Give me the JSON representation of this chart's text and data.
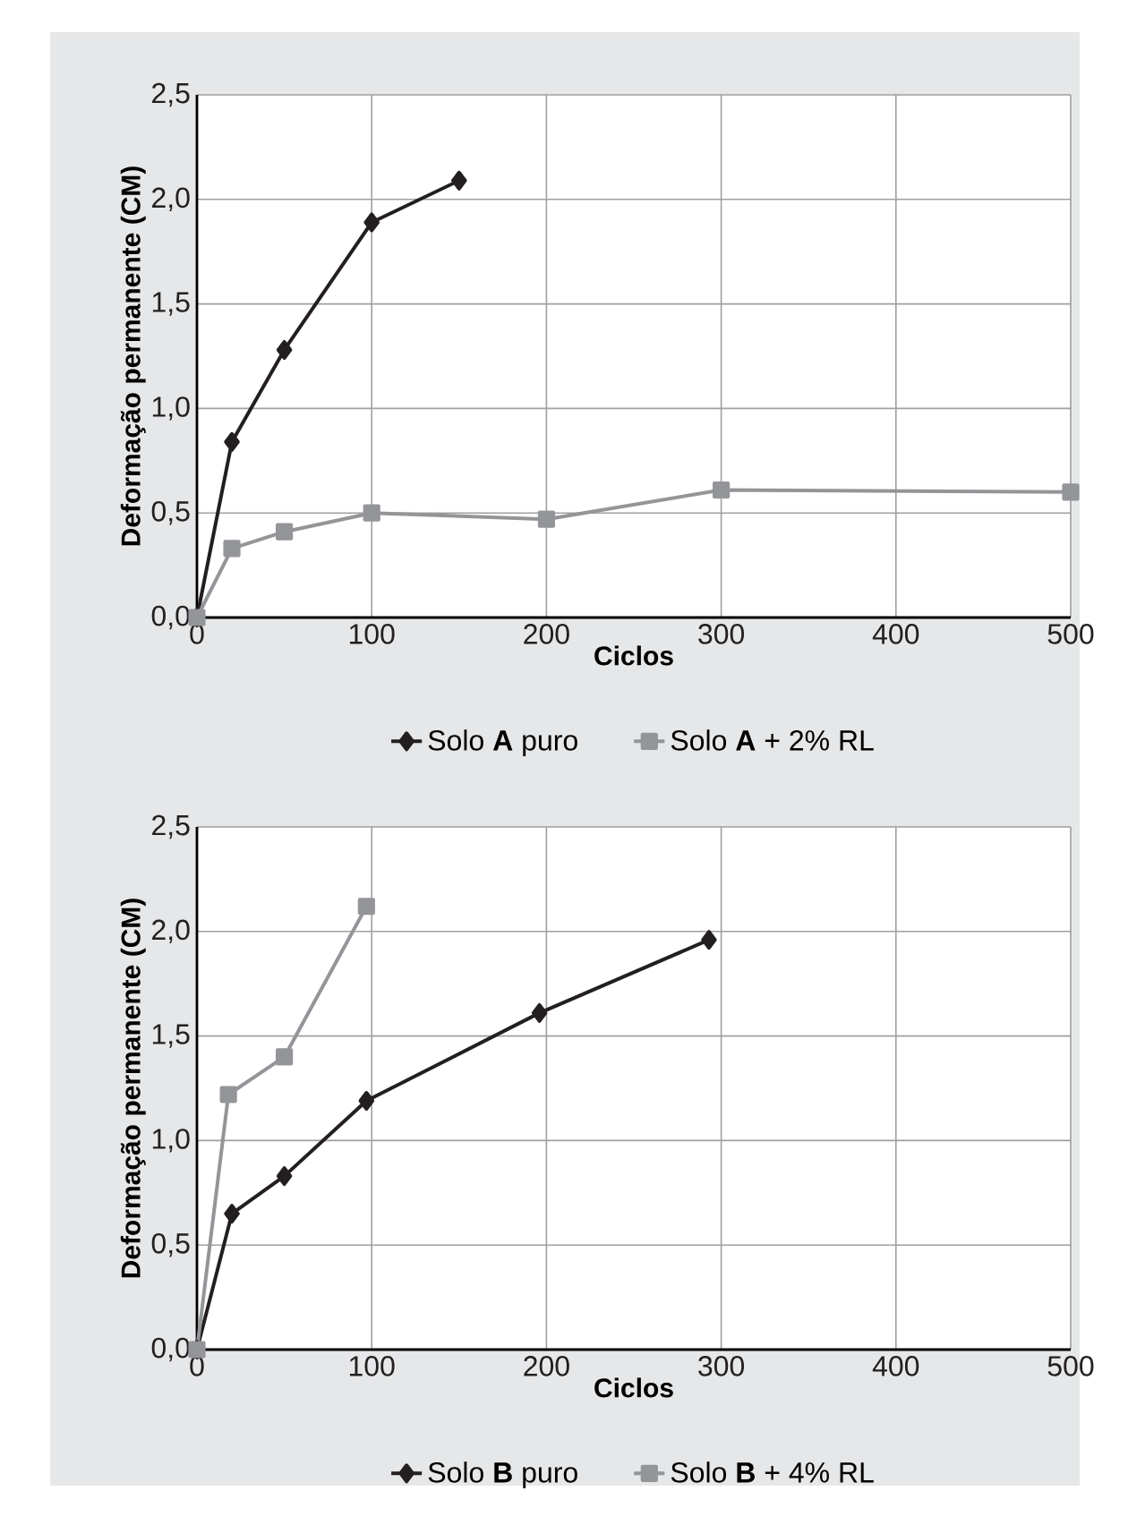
{
  "chart_data": [
    {
      "type": "line",
      "xlabel": "Ciclos",
      "ylabel": "Deformação permanente (CM)",
      "xlim": [
        0,
        500
      ],
      "ylim": [
        0,
        2.5
      ],
      "xticks": [
        0,
        100,
        200,
        300,
        400,
        500
      ],
      "yticks": [
        {
          "value": 0,
          "label": "0,0"
        },
        {
          "value": 0.5,
          "label": "0,5"
        },
        {
          "value": 1,
          "label": "1,0"
        },
        {
          "value": 1.5,
          "label": "1,5"
        },
        {
          "value": 2,
          "label": "2,0"
        },
        {
          "value": 2.5,
          "label": "2,5"
        }
      ],
      "grid": true,
      "legend": "bottom",
      "series": [
        {
          "name": "Solo **A** puro",
          "color": "#231f20",
          "marker": "diamond",
          "x": [
            0,
            20,
            50,
            100,
            150
          ],
          "values": [
            0,
            0.84,
            1.28,
            1.89,
            2.09
          ]
        },
        {
          "name": "Solo **A** + 2% RL",
          "color": "#939598",
          "marker": "square",
          "x": [
            0,
            20,
            50,
            100,
            200,
            300,
            500
          ],
          "values": [
            0,
            0.33,
            0.41,
            0.5,
            0.47,
            0.61,
            0.6
          ]
        }
      ]
    },
    {
      "type": "line",
      "xlabel": "Ciclos",
      "ylabel": "Deformação permanente (CM)",
      "xlim": [
        0,
        500
      ],
      "ylim": [
        0,
        2.5
      ],
      "xticks": [
        0,
        100,
        200,
        300,
        400,
        500
      ],
      "yticks": [
        {
          "value": 0,
          "label": "0,0"
        },
        {
          "value": 0.5,
          "label": "0,5"
        },
        {
          "value": 1,
          "label": "1,0"
        },
        {
          "value": 1.5,
          "label": "1,5"
        },
        {
          "value": 2,
          "label": "2,0"
        },
        {
          "value": 2.5,
          "label": "2,5"
        }
      ],
      "grid": true,
      "legend": "bottom",
      "series": [
        {
          "name": "Solo **B** puro",
          "color": "#231f20",
          "marker": "diamond",
          "x": [
            0,
            20,
            50,
            97,
            196,
            293
          ],
          "values": [
            0,
            0.65,
            0.83,
            1.19,
            1.61,
            1.96
          ]
        },
        {
          "name": "Solo **B** + 4% RL",
          "color": "#939598",
          "marker": "square",
          "x": [
            0,
            18,
            50,
            97
          ],
          "values": [
            0,
            1.22,
            1.4,
            2.12
          ]
        }
      ]
    }
  ]
}
